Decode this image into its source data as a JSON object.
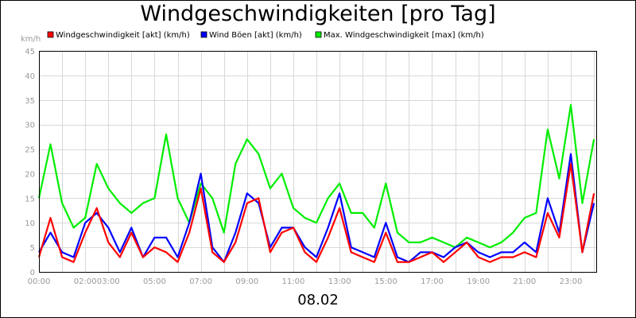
{
  "chart_data": {
    "type": "line",
    "title": "Windgeschwindigkeiten [pro Tag]",
    "xlabel": "08.02",
    "ylabel": "km/h",
    "ylim": [
      0,
      45
    ],
    "yticks": [
      "0",
      "5",
      "10",
      "15",
      "20",
      "25",
      "30",
      "35",
      "40",
      "45"
    ],
    "xticks": [
      {
        "hour": 0,
        "label": "00:00"
      },
      {
        "hour": 2,
        "label": "02:00"
      },
      {
        "hour": 3,
        "label": "03:00"
      },
      {
        "hour": 5,
        "label": "05:00"
      },
      {
        "hour": 7,
        "label": "07:00"
      },
      {
        "hour": 9,
        "label": "09:00"
      },
      {
        "hour": 11,
        "label": "11:00"
      },
      {
        "hour": 13,
        "label": "13:00"
      },
      {
        "hour": 15,
        "label": "15:00"
      },
      {
        "hour": 17,
        "label": "17:00"
      },
      {
        "hour": 19,
        "label": "19:00"
      },
      {
        "hour": 21,
        "label": "21:00"
      },
      {
        "hour": 23,
        "label": "23:00"
      }
    ],
    "xlim_hours": [
      0,
      24.1
    ],
    "grid": true,
    "legend_position": "top",
    "x_hours": [
      0.0,
      0.5,
      1.0,
      1.5,
      2.0,
      2.5,
      3.0,
      3.5,
      4.0,
      4.5,
      5.0,
      5.5,
      6.0,
      6.5,
      7.0,
      7.5,
      8.0,
      8.5,
      9.0,
      9.5,
      10.0,
      10.5,
      11.0,
      11.5,
      12.0,
      12.5,
      13.0,
      13.5,
      14.0,
      14.5,
      15.0,
      15.5,
      16.0,
      16.5,
      17.0,
      17.5,
      18.0,
      18.5,
      19.0,
      19.5,
      20.0,
      20.5,
      21.0,
      21.5,
      22.0,
      22.5,
      23.0,
      23.5,
      24.0
    ],
    "series": [
      {
        "name": "Windgeschwindigkeit [akt] (km/h)",
        "color": "#ff0000",
        "values": [
          3,
          11,
          3,
          2,
          8,
          13,
          6,
          3,
          8,
          3,
          5,
          4,
          2,
          8,
          17,
          4,
          2,
          6,
          14,
          15,
          4,
          8,
          9,
          4,
          2,
          7,
          13,
          4,
          3,
          2,
          8,
          2,
          2,
          3,
          4,
          2,
          4,
          6,
          3,
          2,
          3,
          3,
          4,
          3,
          12,
          7,
          22,
          4,
          16
        ]
      },
      {
        "name": "Wind Böen [akt] (km/h)",
        "color": "#0000ff",
        "values": [
          4,
          8,
          4,
          3,
          10,
          12,
          9,
          4,
          9,
          3,
          7,
          7,
          3,
          10,
          20,
          5,
          2,
          8,
          16,
          14,
          5,
          9,
          9,
          5,
          3,
          9,
          16,
          5,
          4,
          3,
          10,
          3,
          2,
          4,
          4,
          3,
          5,
          6,
          4,
          3,
          4,
          4,
          6,
          4,
          15,
          8,
          24,
          4,
          14
        ]
      },
      {
        "name": "Max. Windgeschwindigkeit [max] (km/h)",
        "color": "#00ee00",
        "values": [
          15,
          26,
          14,
          9,
          11,
          22,
          17,
          14,
          12,
          14,
          15,
          28,
          15,
          10,
          18,
          15,
          8,
          22,
          27,
          24,
          17,
          20,
          13,
          11,
          10,
          15,
          18,
          12,
          12,
          9,
          18,
          8,
          6,
          6,
          7,
          6,
          5,
          7,
          6,
          5,
          6,
          8,
          11,
          12,
          29,
          19,
          34,
          14,
          27
        ]
      }
    ]
  }
}
